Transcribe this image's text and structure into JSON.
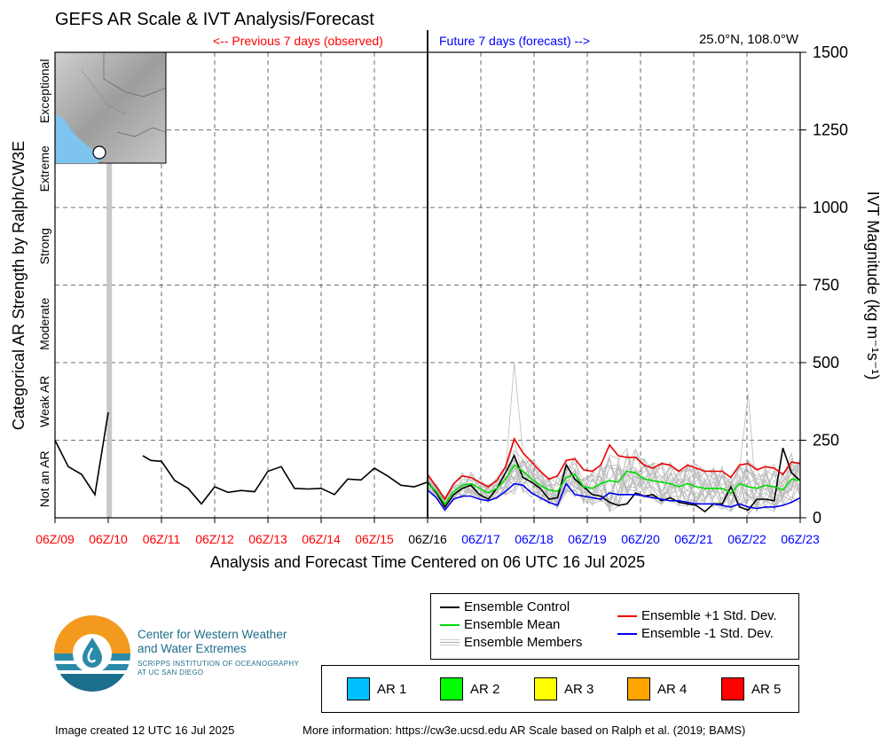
{
  "header": {
    "title": "GEFS AR Scale & IVT Analysis/Forecast",
    "previous_label": "<-- Previous 7 days (observed)",
    "future_label": "Future 7 days (forecast) -->",
    "location": "25.0°N, 108.0°W"
  },
  "chart_data": {
    "type": "line",
    "xlabel": "Analysis and Forecast Time Centered on 06 UTC 16 Jul 2025",
    "ylabel_right": "IVT Magnitude (kg m⁻¹s⁻¹)",
    "ylabel_left": "Categorical AR Strength by Ralph/CW3E",
    "ylim": [
      0,
      1500
    ],
    "y_ticks": [
      "0",
      "250",
      "500",
      "750",
      "1000",
      "1250",
      "1500"
    ],
    "x_ticks": [
      {
        "label": "06Z/09",
        "color": "#ff0000"
      },
      {
        "label": "06Z/10",
        "color": "#ff0000"
      },
      {
        "label": "06Z/11",
        "color": "#ff0000"
      },
      {
        "label": "06Z/12",
        "color": "#ff0000"
      },
      {
        "label": "06Z/13",
        "color": "#ff0000"
      },
      {
        "label": "06Z/14",
        "color": "#ff0000"
      },
      {
        "label": "06Z/15",
        "color": "#ff0000"
      },
      {
        "label": "06Z/16",
        "color": "#000000"
      },
      {
        "label": "06Z/17",
        "color": "#0000ff"
      },
      {
        "label": "06Z/18",
        "color": "#0000ff"
      },
      {
        "label": "06Z/19",
        "color": "#0000ff"
      },
      {
        "label": "06Z/20",
        "color": "#0000ff"
      },
      {
        "label": "06Z/21",
        "color": "#0000ff"
      },
      {
        "label": "06Z/22",
        "color": "#0000ff"
      },
      {
        "label": "06Z/23",
        "color": "#0000ff"
      }
    ],
    "categories_left": [
      "Not an AR",
      "Weak AR",
      "Moderate",
      "Strong",
      "Extreme",
      "Exceptional"
    ],
    "grid": true,
    "highlight_span_days": [
      0.97,
      1.07
    ],
    "series": [
      {
        "name": "Ensemble Control",
        "color": "#000000",
        "segments": [
          [
            [
              0,
              250
            ],
            [
              0.25,
              165
            ],
            [
              0.5,
              140
            ],
            [
              0.75,
              75
            ],
            [
              1.0,
              340
            ]
          ],
          [
            [
              1.65,
              200
            ],
            [
              1.8,
              185
            ],
            [
              2.0,
              182
            ],
            [
              2.25,
              120
            ],
            [
              2.5,
              95
            ],
            [
              2.75,
              45
            ],
            [
              3.0,
              100
            ],
            [
              3.25,
              82
            ],
            [
              3.5,
              88
            ],
            [
              3.75,
              84
            ],
            [
              4.0,
              150
            ],
            [
              4.25,
              165
            ],
            [
              4.5,
              95
            ],
            [
              4.75,
              93
            ],
            [
              5.0,
              95
            ],
            [
              5.25,
              75
            ],
            [
              5.5,
              125
            ],
            [
              5.75,
              122
            ],
            [
              6.0,
              160
            ],
            [
              6.25,
              135
            ],
            [
              6.5,
              105
            ],
            [
              6.75,
              100
            ],
            [
              7.0,
              115
            ]
          ]
        ]
      },
      {
        "name": "Ensemble Control (forecast)",
        "color": "#000000",
        "values": [
          115,
          80,
          35,
          75,
          95,
          105,
          75,
          60,
          95,
          145,
          200,
          130,
          115,
          95,
          60,
          65,
          170,
          125,
          100,
          75,
          70,
          50,
          40,
          45,
          80,
          70,
          75,
          55,
          65,
          50,
          45,
          40,
          20,
          45,
          45,
          100,
          35,
          25,
          60,
          60,
          55,
          225,
          145,
          120
        ]
      },
      {
        "name": "Ensemble Mean",
        "color": "#00dd00",
        "values": [
          110,
          85,
          45,
          85,
          105,
          110,
          95,
          80,
          95,
          125,
          170,
          150,
          125,
          105,
          90,
          85,
          130,
          140,
          100,
          95,
          110,
          120,
          115,
          150,
          145,
          125,
          120,
          115,
          110,
          100,
          110,
          100,
          95,
          95,
          95,
          80,
          110,
          100,
          95,
          105,
          100,
          90,
          125,
          120
        ]
      },
      {
        "name": "Ensemble +1 Std. Dev.",
        "color": "#ee0000",
        "values": [
          140,
          100,
          60,
          110,
          135,
          130,
          115,
          100,
          120,
          165,
          255,
          210,
          180,
          150,
          125,
          135,
          185,
          190,
          155,
          150,
          170,
          235,
          200,
          195,
          195,
          170,
          160,
          175,
          170,
          150,
          170,
          160,
          150,
          150,
          150,
          130,
          170,
          175,
          155,
          165,
          160,
          140,
          180,
          175
        ]
      },
      {
        "name": "Ensemble -1 Std. Dev.",
        "color": "#0000ee",
        "values": [
          90,
          65,
          25,
          60,
          70,
          70,
          60,
          55,
          65,
          85,
          110,
          105,
          80,
          65,
          50,
          40,
          110,
          75,
          70,
          65,
          60,
          80,
          75,
          75,
          75,
          70,
          65,
          60,
          55,
          55,
          50,
          45,
          45,
          45,
          40,
          35,
          45,
          35,
          30,
          35,
          35,
          40,
          50,
          65
        ]
      }
    ],
    "members_label": "Ensemble Members"
  },
  "legend": {
    "items": [
      {
        "label": "Ensemble Control",
        "color": "#000000"
      },
      {
        "label": "Ensemble Mean",
        "color": "#00dd00"
      },
      {
        "label": "Ensemble Members",
        "color": "#aaaaaa"
      },
      {
        "label": "Ensemble +1 Std. Dev.",
        "color": "#ee0000"
      },
      {
        "label": "Ensemble -1 Std. Dev.",
        "color": "#0000ee"
      }
    ],
    "ar_items": [
      {
        "label": "AR 1",
        "color": "#00bfff"
      },
      {
        "label": "AR 2",
        "color": "#00ff00"
      },
      {
        "label": "AR 3",
        "color": "#ffff00"
      },
      {
        "label": "AR 4",
        "color": "#ffa500"
      },
      {
        "label": "AR 5",
        "color": "#ff0000"
      }
    ]
  },
  "branding": {
    "org_name_line1": "Center for Western Weather",
    "org_name_line2": "and Water Extremes",
    "org_sub_line1": "SCRIPPS INSTITUTION OF OCEANOGRAPHY",
    "org_sub_line2": "AT UC SAN DIEGO"
  },
  "footer": {
    "created": "Image created 12 UTC 16 Jul 2025",
    "more_info": "More information: https://cw3e.ucsd.edu AR Scale based on Ralph et al. (2019; BAMS)"
  }
}
